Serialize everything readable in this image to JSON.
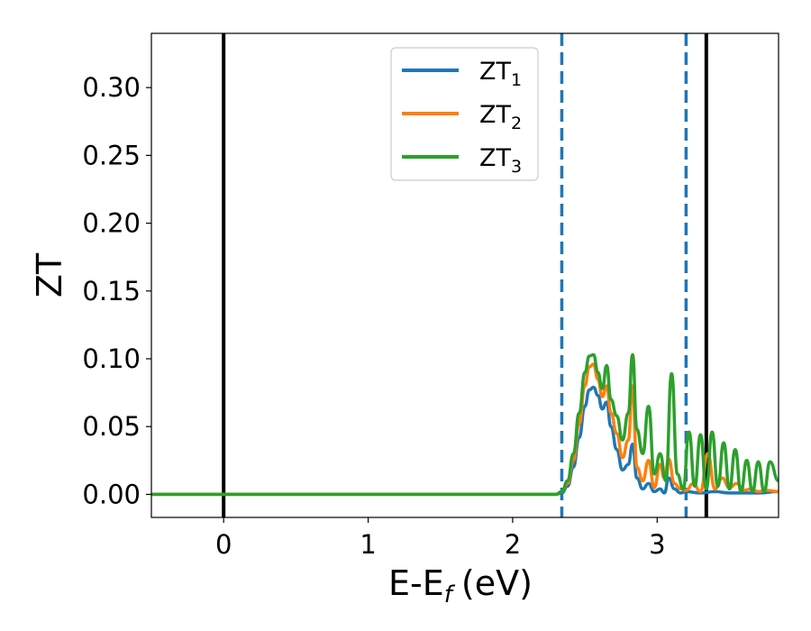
{
  "chart_data": {
    "type": "line",
    "xlabel": "E-E",
    "xlabel_sub": "f",
    "xlabel_unit": "(eV)",
    "ylabel": "ZT",
    "xlim": [
      -0.5,
      3.84
    ],
    "ylim": [
      -0.017,
      0.34
    ],
    "xticks": [
      0,
      1,
      2,
      3
    ],
    "xtick_labels": [
      "0",
      "1",
      "2",
      "3"
    ],
    "yticks": [
      0.0,
      0.05,
      0.1,
      0.15,
      0.2,
      0.25,
      0.3
    ],
    "ytick_labels": [
      "0.00",
      "0.05",
      "0.10",
      "0.15",
      "0.20",
      "0.25",
      "0.30"
    ],
    "grid": false,
    "legend_position": "top-center",
    "legend": [
      {
        "base": "ZT",
        "sub": "1",
        "color": "#1f77b4"
      },
      {
        "base": "ZT",
        "sub": "2",
        "color": "#ff7f0e"
      },
      {
        "base": "ZT",
        "sub": "3",
        "color": "#2ca02c"
      }
    ],
    "vlines": [
      {
        "x": 0.0,
        "style": "solid",
        "color": "#000000"
      },
      {
        "x": 3.34,
        "style": "solid",
        "color": "#000000"
      },
      {
        "x": 2.34,
        "style": "dashed",
        "color": "#1f77b4"
      },
      {
        "x": 3.2,
        "style": "dashed",
        "color": "#1f77b4"
      }
    ],
    "series": [
      {
        "color": "#1f77b4",
        "x": [
          -0.5,
          2.3,
          2.34,
          2.38,
          2.42,
          2.46,
          2.5,
          2.53,
          2.56,
          2.59,
          2.62,
          2.65,
          2.68,
          2.72,
          2.76,
          2.8,
          2.83,
          2.86,
          2.9,
          2.94,
          2.98,
          3.02,
          3.05,
          3.08,
          3.12,
          3.16,
          3.2,
          3.3,
          3.4,
          3.5,
          3.6,
          3.7,
          3.84
        ],
        "y": [
          0,
          0,
          0.001,
          0.006,
          0.02,
          0.042,
          0.065,
          0.077,
          0.079,
          0.073,
          0.063,
          0.068,
          0.05,
          0.033,
          0.018,
          0.022,
          0.037,
          0.012,
          0.004,
          0.008,
          0.002,
          0.004,
          0.001,
          0.012,
          0.004,
          0.001,
          0.002,
          0.001,
          0.002,
          0.001,
          0.001,
          0.001,
          0.002
        ]
      },
      {
        "color": "#ff7f0e",
        "x": [
          -0.5,
          2.3,
          2.34,
          2.38,
          2.42,
          2.46,
          2.5,
          2.53,
          2.56,
          2.59,
          2.62,
          2.65,
          2.68,
          2.72,
          2.76,
          2.8,
          2.83,
          2.86,
          2.9,
          2.94,
          2.98,
          3.02,
          3.05,
          3.08,
          3.12,
          3.16,
          3.2,
          3.25,
          3.3,
          3.35,
          3.4,
          3.45,
          3.5,
          3.55,
          3.6,
          3.65,
          3.7,
          3.75,
          3.84
        ],
        "y": [
          0,
          0,
          0.002,
          0.008,
          0.025,
          0.052,
          0.08,
          0.094,
          0.096,
          0.085,
          0.072,
          0.08,
          0.06,
          0.045,
          0.027,
          0.04,
          0.08,
          0.02,
          0.01,
          0.025,
          0.005,
          0.022,
          0.012,
          0.026,
          0.008,
          0.004,
          0.003,
          0.008,
          0.002,
          0.03,
          0.004,
          0.012,
          0.005,
          0.008,
          0.003,
          0.004,
          0.002,
          0.003,
          0.002
        ]
      },
      {
        "color": "#2ca02c",
        "x": [
          -0.5,
          2.3,
          2.34,
          2.38,
          2.42,
          2.46,
          2.5,
          2.53,
          2.56,
          2.59,
          2.62,
          2.65,
          2.68,
          2.72,
          2.76,
          2.8,
          2.83,
          2.86,
          2.9,
          2.94,
          2.98,
          3.02,
          3.06,
          3.1,
          3.14,
          3.18,
          3.22,
          3.26,
          3.3,
          3.34,
          3.38,
          3.42,
          3.46,
          3.5,
          3.54,
          3.58,
          3.62,
          3.66,
          3.7,
          3.74,
          3.78,
          3.84
        ],
        "y": [
          0,
          0,
          0.002,
          0.01,
          0.03,
          0.06,
          0.09,
          0.102,
          0.103,
          0.09,
          0.078,
          0.095,
          0.07,
          0.058,
          0.04,
          0.06,
          0.103,
          0.048,
          0.03,
          0.065,
          0.015,
          0.03,
          0.01,
          0.089,
          0.015,
          0.004,
          0.046,
          0.006,
          0.044,
          0.004,
          0.046,
          0.006,
          0.038,
          0.004,
          0.033,
          0.002,
          0.025,
          0.002,
          0.024,
          0.002,
          0.024,
          0.01
        ]
      }
    ]
  }
}
